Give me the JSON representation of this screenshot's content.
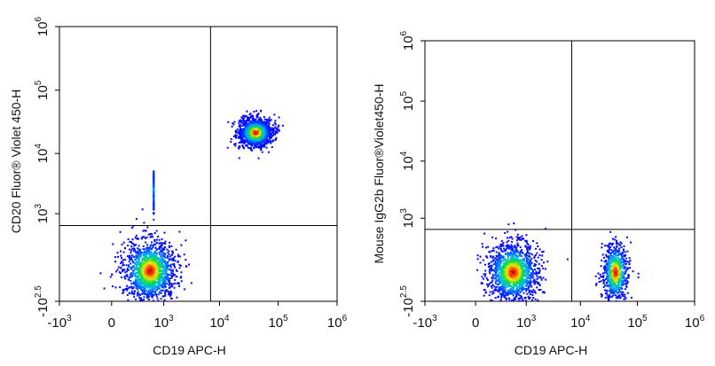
{
  "chart_data": [
    {
      "type": "scatter",
      "xlabel": "CD19  APC-H",
      "ylabel": "CD20  Fluor® Violet 450-H",
      "x_scale": "biexponential",
      "y_scale": "biexponential",
      "xlim": [
        -1000,
        1000000
      ],
      "ylim": [
        -316,
        1000000
      ],
      "x_ticks": [
        {
          "base": "-10",
          "exp": "3",
          "value": -1000
        },
        {
          "base": "0",
          "exp": "",
          "value": 0
        },
        {
          "base": "10",
          "exp": "3",
          "value": 1000
        },
        {
          "base": "10",
          "exp": "4",
          "value": 10000
        },
        {
          "base": "10",
          "exp": "5",
          "value": 100000
        },
        {
          "base": "10",
          "exp": "6",
          "value": 1000000
        }
      ],
      "y_ticks": [
        {
          "base": "-10",
          "exp": "2.5",
          "value": -316
        },
        {
          "base": "10",
          "exp": "3",
          "value": 1000
        },
        {
          "base": "10",
          "exp": "4",
          "value": 10000
        },
        {
          "base": "10",
          "exp": "5",
          "value": 100000
        },
        {
          "base": "10",
          "exp": "6",
          "value": 1000000
        }
      ],
      "quadrant_gate": {
        "x": 7000,
        "y": 600
      },
      "populations": [
        {
          "cx": 500,
          "cy": 0,
          "sx": 1000,
          "sy": 260,
          "density": "high"
        },
        {
          "cx": 40000,
          "cy": 22000,
          "sx": 1.8,
          "sy": 1.6,
          "density": "high"
        },
        {
          "cx": 600,
          "cy": 2500,
          "sx": 1.0,
          "sy": 1.8,
          "density": "low"
        }
      ],
      "grid": false,
      "legend": "none"
    },
    {
      "type": "scatter",
      "xlabel": "CD19  APC-H",
      "ylabel": "Mouse IgG2b  Fluor®Violet450-H",
      "x_scale": "biexponential",
      "y_scale": "biexponential",
      "xlim": [
        -1000,
        1000000
      ],
      "ylim": [
        -316,
        1000000
      ],
      "x_ticks": [
        {
          "base": "-10",
          "exp": "3",
          "value": -1000
        },
        {
          "base": "0",
          "exp": "",
          "value": 0
        },
        {
          "base": "10",
          "exp": "3",
          "value": 1000
        },
        {
          "base": "10",
          "exp": "4",
          "value": 10000
        },
        {
          "base": "10",
          "exp": "5",
          "value": 100000
        },
        {
          "base": "10",
          "exp": "6",
          "value": 1000000
        }
      ],
      "y_ticks": [
        {
          "base": "-10",
          "exp": "2.5",
          "value": -316
        },
        {
          "base": "10",
          "exp": "3",
          "value": 1000
        },
        {
          "base": "10",
          "exp": "4",
          "value": 10000
        },
        {
          "base": "10",
          "exp": "5",
          "value": 100000
        },
        {
          "base": "10",
          "exp": "6",
          "value": 1000000
        }
      ],
      "quadrant_gate": {
        "x": 7000,
        "y": 600
      },
      "populations": [
        {
          "cx": 500,
          "cy": 0,
          "sx": 1000,
          "sy": 260,
          "density": "high"
        },
        {
          "cx": 40000,
          "cy": 0,
          "sx": 1.6,
          "sy": 260,
          "density": "medium"
        }
      ],
      "grid": false,
      "legend": "none"
    }
  ]
}
